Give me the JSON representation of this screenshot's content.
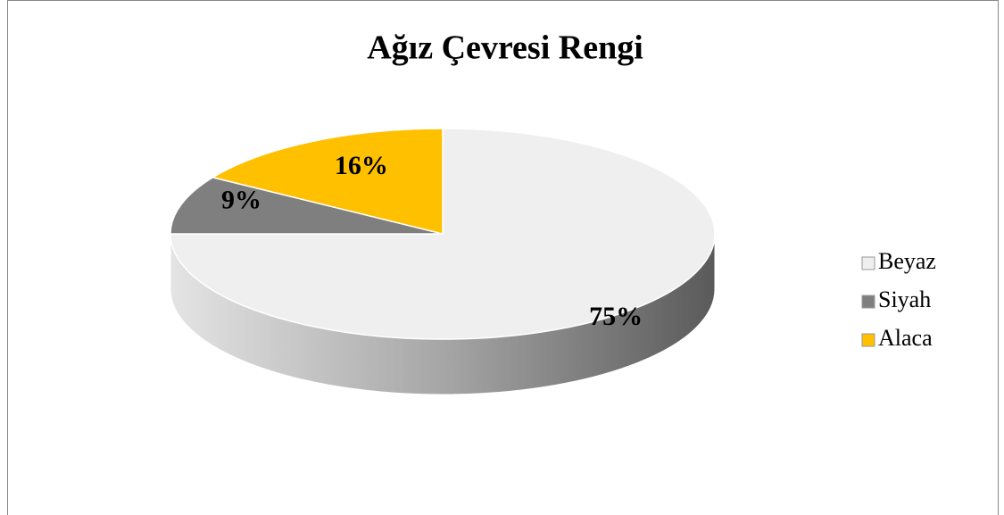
{
  "chart_data": {
    "type": "pie",
    "title": "Ağız Çevresi Rengi",
    "categories": [
      "Beyaz",
      "Siyah",
      "Alaca"
    ],
    "values": [
      75,
      9,
      16
    ],
    "value_labels": [
      "75%",
      "9%",
      "16%"
    ],
    "colors": [
      "#efefef",
      "#7f7f7f",
      "#ffc000"
    ],
    "legend": "right"
  }
}
